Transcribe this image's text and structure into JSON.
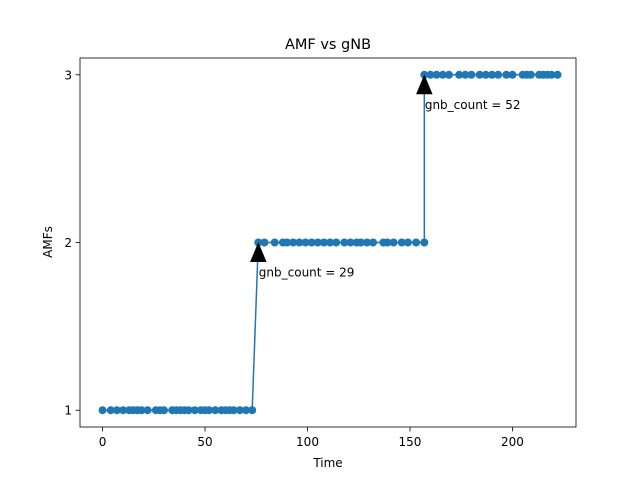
{
  "chart_data": {
    "type": "line",
    "title": "AMF vs gNB",
    "xlabel": "Time",
    "ylabel": "AMFs",
    "xlim": [
      -11,
      231
    ],
    "ylim": [
      0.9,
      3.1
    ],
    "xticks": [
      0,
      50,
      100,
      150,
      200
    ],
    "yticks": [
      1,
      2,
      3
    ],
    "grid": false,
    "legend": "none",
    "series": [
      {
        "color": "#1f77b4",
        "marker": "circle",
        "x": [
          0,
          4,
          7,
          10,
          13,
          15,
          17,
          19,
          22,
          26,
          28,
          30,
          34,
          36,
          38,
          40,
          42,
          45,
          48,
          50,
          52,
          55,
          58,
          60,
          62,
          64,
          67,
          70,
          73,
          76,
          79,
          84,
          88,
          90,
          93,
          96,
          99,
          102,
          105,
          108,
          111,
          114,
          118,
          121,
          124,
          126,
          129,
          132,
          137,
          139,
          142,
          146,
          149,
          153,
          157,
          157,
          160,
          163,
          166,
          169,
          174,
          177,
          180,
          184,
          187,
          190,
          193,
          197,
          200,
          205,
          207,
          209,
          213,
          215,
          217,
          219,
          222
        ],
        "y": [
          1,
          1,
          1,
          1,
          1,
          1,
          1,
          1,
          1,
          1,
          1,
          1,
          1,
          1,
          1,
          1,
          1,
          1,
          1,
          1,
          1,
          1,
          1,
          1,
          1,
          1,
          1,
          1,
          1,
          2,
          2,
          2,
          2,
          2,
          2,
          2,
          2,
          2,
          2,
          2,
          2,
          2,
          2,
          2,
          2,
          2,
          2,
          2,
          2,
          2,
          2,
          2,
          2,
          2,
          2,
          3,
          3,
          3,
          3,
          3,
          3,
          3,
          3,
          3,
          3,
          3,
          3,
          3,
          3,
          3,
          3,
          3,
          3,
          3,
          3,
          3,
          3
        ]
      }
    ],
    "annotations": [
      {
        "text": "gnb_count = 29",
        "x": 76,
        "y": 2
      },
      {
        "text": "gnb_count = 52",
        "x": 157,
        "y": 3
      }
    ]
  }
}
